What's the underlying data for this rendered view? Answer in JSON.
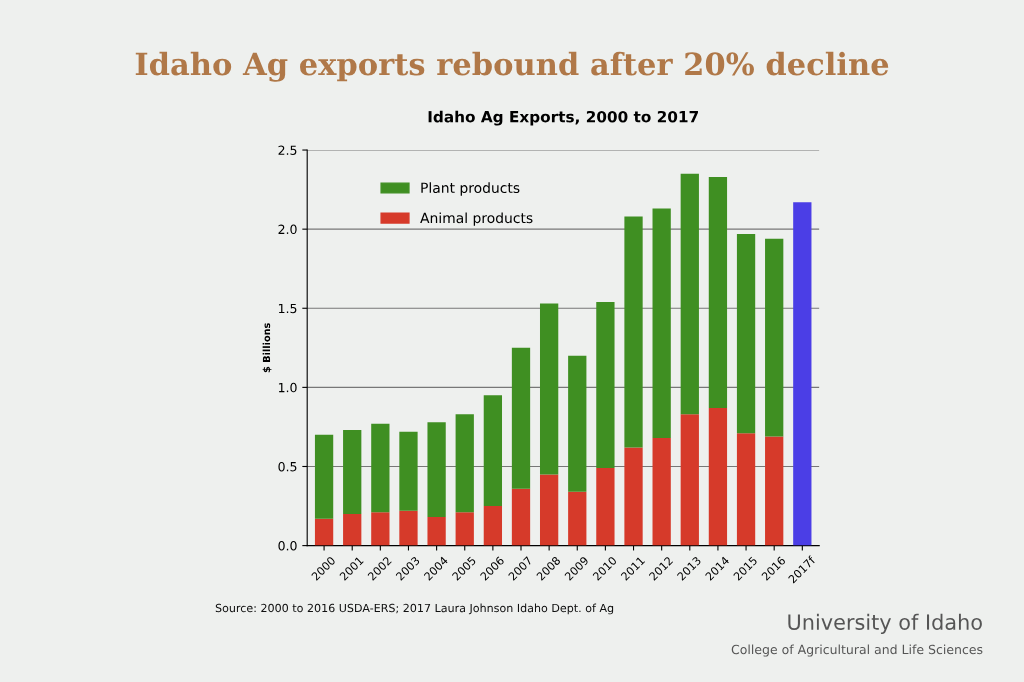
{
  "chart_data": {
    "type": "bar",
    "title": "Idaho Ag exports rebound after 20% decline",
    "subtitle": "Idaho Ag Exports, 2000 to 2017",
    "ylabel": "$ Billions",
    "categories": [
      "2000",
      "2001",
      "2002",
      "2003",
      "2004",
      "2005",
      "2006",
      "2007",
      "2008",
      "2009",
      "2010",
      "2011",
      "2012",
      "2013",
      "2014",
      "2015",
      "2016",
      "2017f"
    ],
    "stacked": true,
    "series": [
      {
        "name": "Animal products",
        "color": "#d63a2a",
        "values": [
          0.17,
          0.2,
          0.21,
          0.22,
          0.18,
          0.21,
          0.25,
          0.36,
          0.45,
          0.34,
          0.49,
          0.62,
          0.68,
          0.83,
          0.87,
          0.71,
          0.69,
          null
        ]
      },
      {
        "name": "Plant products",
        "color": "#3f8f22",
        "values": [
          0.53,
          0.53,
          0.56,
          0.5,
          0.6,
          0.62,
          0.7,
          0.89,
          1.08,
          0.86,
          1.05,
          1.46,
          1.45,
          1.52,
          1.46,
          1.26,
          1.25,
          null
        ]
      },
      {
        "color": "#4b3ee6",
        "values": [
          null,
          null,
          null,
          null,
          null,
          null,
          null,
          null,
          null,
          null,
          null,
          null,
          null,
          null,
          null,
          null,
          null,
          2.17
        ]
      }
    ],
    "ylim": [
      0,
      2.5
    ],
    "yticks": [
      {
        "value": 0,
        "label": "0.0"
      },
      {
        "value": 0.5,
        "label": "0.5"
      },
      {
        "value": 1,
        "label": "1.0"
      },
      {
        "value": 1.5,
        "label": "1.5"
      },
      {
        "value": 2,
        "label": "2.0"
      },
      {
        "value": 2.5,
        "label": "2.5"
      }
    ],
    "grid": "y",
    "legend": "top left",
    "annotations": [
      "Source: 2000 to 2016 USDA-ERS; 2017 Laura Johnson Idaho Dept. of Ag",
      "University of Idaho",
      "College of Agricultural and Life Sciences"
    ]
  }
}
